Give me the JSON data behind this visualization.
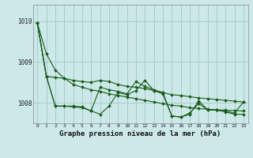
{
  "title": "Graphe pression niveau de la mer (hPa)",
  "background_color": "#cce8e8",
  "grid_color": "#aacccc",
  "line_color": "#1a5c1a",
  "xlim": [
    -0.5,
    23.5
  ],
  "ylim": [
    1007.5,
    1010.4
  ],
  "yticks": [
    1008,
    1009,
    1010
  ],
  "xticks": [
    0,
    1,
    2,
    3,
    4,
    5,
    6,
    7,
    8,
    9,
    10,
    11,
    12,
    13,
    14,
    15,
    16,
    17,
    18,
    19,
    20,
    21,
    22,
    23
  ],
  "series": [
    [
      1009.95,
      1009.2,
      1008.8,
      1008.6,
      1008.45,
      1008.38,
      1008.32,
      1008.28,
      1008.22,
      1008.18,
      1008.14,
      1008.1,
      1008.06,
      1008.02,
      1007.98,
      1007.94,
      1007.92,
      1007.88,
      1007.86,
      1007.84,
      1007.83,
      1007.82,
      1007.81,
      1007.8
    ],
    [
      1009.95,
      1008.65,
      1008.62,
      1008.6,
      1008.55,
      1008.52,
      1008.5,
      1008.55,
      1008.52,
      1008.45,
      1008.4,
      1008.38,
      1008.35,
      1008.3,
      1008.25,
      1008.2,
      1008.18,
      1008.15,
      1008.12,
      1008.1,
      1008.08,
      1008.06,
      1008.04,
      1008.02
    ],
    [
      1009.95,
      1008.65,
      1007.92,
      1007.92,
      1007.92,
      1007.9,
      1007.8,
      1008.38,
      1008.32,
      1008.28,
      1008.22,
      1008.52,
      1008.4,
      1008.32,
      1008.25,
      1007.68,
      1007.65,
      1007.72,
      1008.05,
      1007.83,
      1007.82,
      1007.8,
      1007.75,
      1008.02
    ],
    [
      1009.95,
      1008.65,
      1007.92,
      1007.92,
      1007.9,
      1007.88,
      1007.8,
      1007.72,
      1007.92,
      1008.25,
      1008.2,
      1008.3,
      1008.55,
      1008.3,
      1008.22,
      1007.68,
      1007.65,
      1007.75,
      1007.98,
      1007.83,
      1007.82,
      1007.78,
      1007.72,
      1007.72
    ]
  ]
}
